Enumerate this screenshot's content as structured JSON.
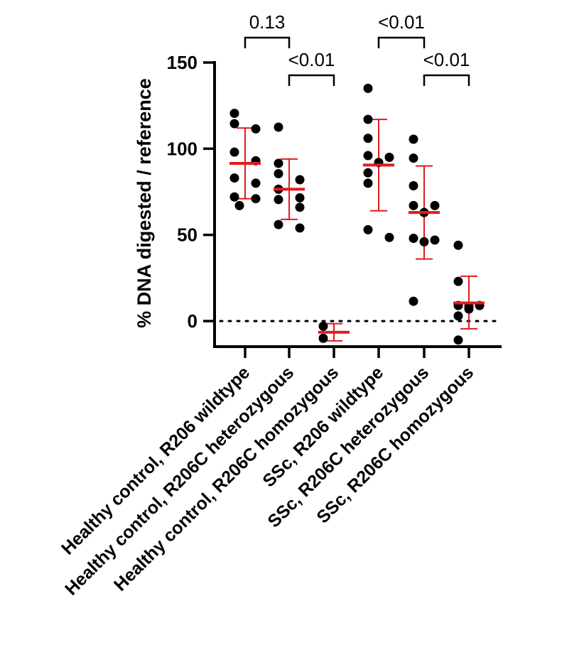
{
  "chart_data": {
    "type": "scatter",
    "title": "",
    "xlabel": "",
    "ylabel": "% DNA digested / reference",
    "ylim": [
      -15,
      150
    ],
    "yticks": [
      0,
      50,
      100,
      150
    ],
    "reference_line": {
      "y": 0,
      "style": "dotted"
    },
    "grid": false,
    "categories": [
      "Healthy control, R206 wildtype",
      "Healthy control, R206C heterozygous",
      "Healthy control, R206C homozygous",
      "SSc, R206 wildtype",
      "SSc, R206C heterozygous",
      "SSc, R206C homozygous"
    ],
    "series": [
      {
        "points": [
          120.5,
          114.5,
          111.5,
          98,
          93,
          83,
          80,
          72,
          71,
          67
        ],
        "mean": 91.5,
        "sd_low": 71,
        "sd_high": 112
      },
      {
        "points": [
          112.5,
          91.5,
          85.5,
          82,
          76.5,
          71.5,
          70.5,
          66,
          56,
          54
        ],
        "mean": 76.5,
        "sd_low": 59,
        "sd_high": 94
      },
      {
        "points": [
          -3,
          -10
        ],
        "mean": -6.5,
        "sd_low": -11.5,
        "sd_high": -1.5
      },
      {
        "points": [
          135,
          117,
          106,
          96,
          95,
          92,
          86,
          80,
          53,
          48.5
        ],
        "mean": 90.5,
        "sd_low": 64,
        "sd_high": 117
      },
      {
        "points": [
          105.5,
          94.5,
          78.5,
          67,
          67,
          63,
          48,
          47,
          46,
          11.5
        ],
        "mean": 63,
        "sd_low": 36,
        "sd_high": 90
      },
      {
        "points": [
          44,
          23,
          9,
          9,
          8.5,
          7,
          3,
          -11
        ],
        "mean": 10.5,
        "sd_low": -4.5,
        "sd_high": 26
      }
    ],
    "comparisons": [
      {
        "from": 0,
        "to": 1,
        "label": "0.13"
      },
      {
        "from": 1,
        "to": 2,
        "label": "<0.01"
      },
      {
        "from": 3,
        "to": 4,
        "label": "<0.01"
      },
      {
        "from": 4,
        "to": 5,
        "label": "<0.01"
      }
    ]
  }
}
